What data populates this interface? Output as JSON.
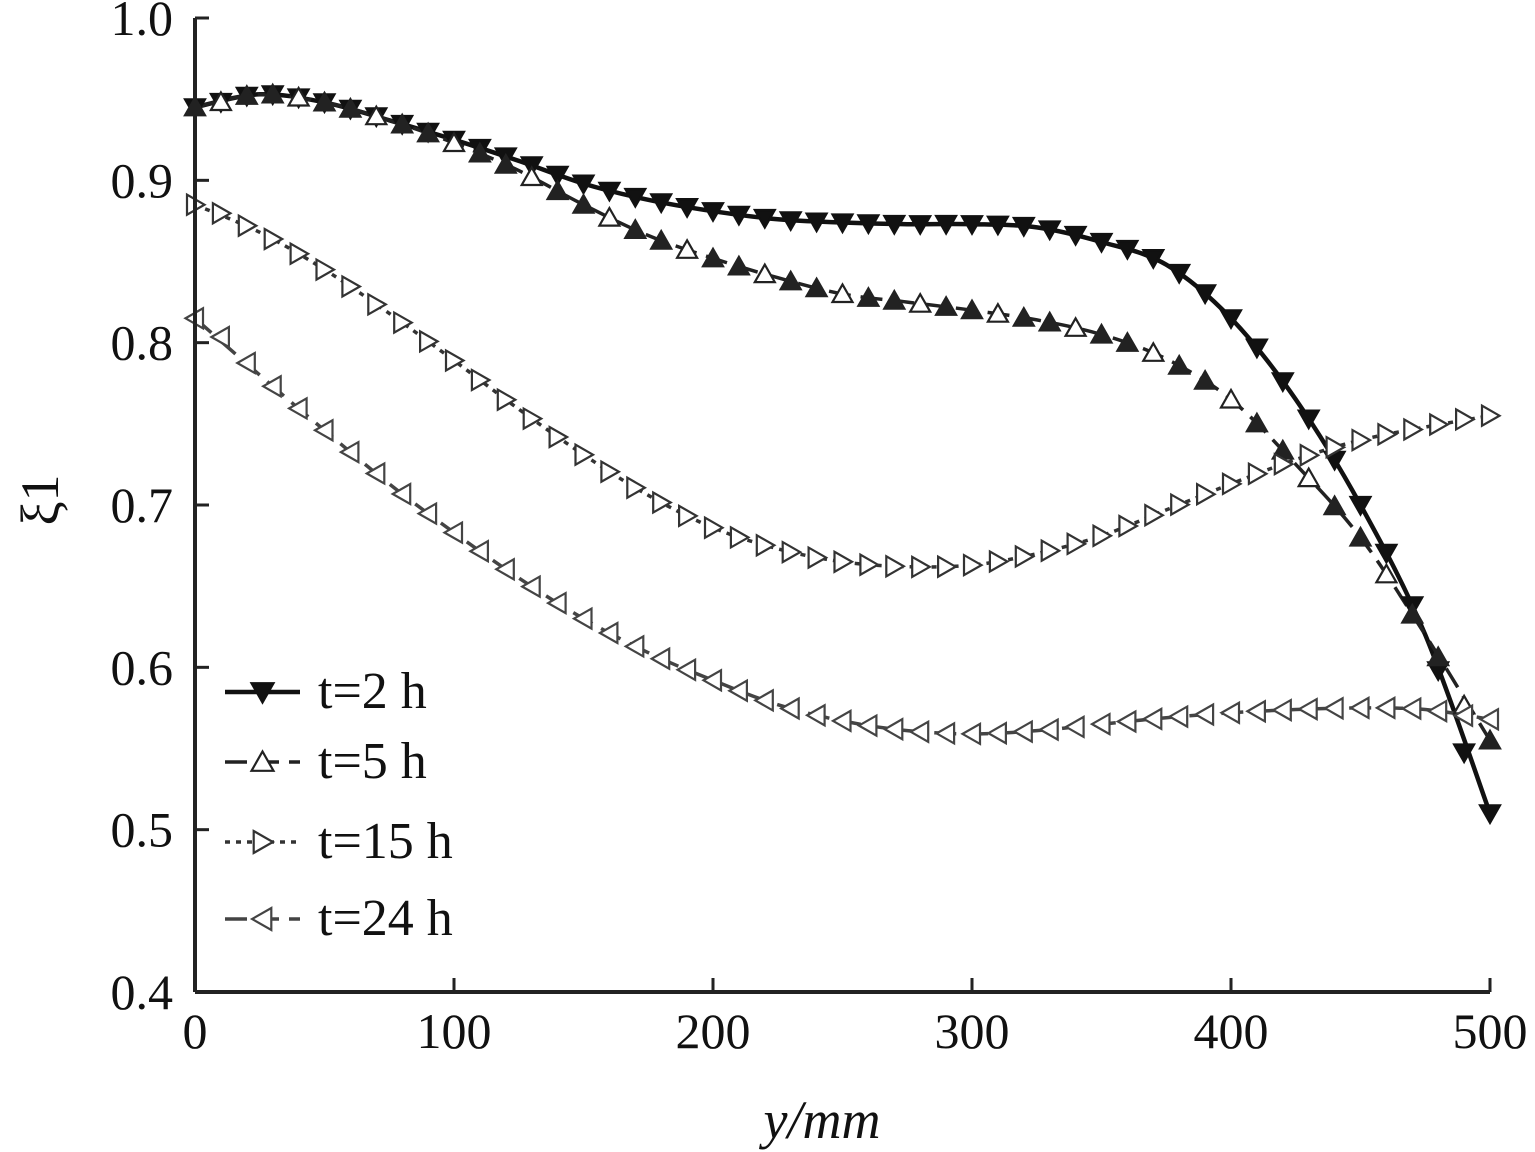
{
  "chart_data": {
    "type": "line",
    "title": "",
    "xlabel": "y/mm",
    "ylabel": "ξ1",
    "xlim": [
      0,
      500
    ],
    "ylim": [
      0.4,
      1.0
    ],
    "x_ticks": [
      "0",
      "100",
      "200",
      "300",
      "400",
      "500"
    ],
    "y_ticks": [
      "0.4",
      "0.5",
      "0.6",
      "0.7",
      "0.8",
      "0.9",
      "1.0"
    ],
    "grid": false,
    "legend_position": "bottom-left",
    "series": [
      {
        "name": "t=2 h",
        "marker": "triangle-down",
        "line": "solid",
        "x": [
          0,
          25,
          50,
          75,
          100,
          125,
          150,
          175,
          200,
          225,
          250,
          275,
          300,
          325,
          350,
          375,
          400,
          425,
          450,
          475,
          500
        ],
        "y": [
          0.945,
          0.953,
          0.948,
          0.937,
          0.925,
          0.912,
          0.898,
          0.888,
          0.881,
          0.876,
          0.874,
          0.873,
          0.873,
          0.871,
          0.862,
          0.848,
          0.815,
          0.765,
          0.7,
          0.62,
          0.51
        ]
      },
      {
        "name": "t=5 h",
        "marker": "triangle-up",
        "line": "dashed",
        "x": [
          0,
          25,
          50,
          75,
          100,
          125,
          150,
          175,
          200,
          225,
          250,
          275,
          300,
          325,
          350,
          375,
          400,
          425,
          450,
          475,
          500
        ],
        "y": [
          0.945,
          0.953,
          0.948,
          0.937,
          0.923,
          0.906,
          0.885,
          0.866,
          0.852,
          0.84,
          0.83,
          0.825,
          0.82,
          0.814,
          0.805,
          0.79,
          0.765,
          0.725,
          0.68,
          0.62,
          0.555
        ]
      },
      {
        "name": "t=15 h",
        "marker": "triangle-right",
        "line": "dotted",
        "x": [
          0,
          25,
          50,
          75,
          100,
          125,
          150,
          175,
          200,
          225,
          250,
          275,
          300,
          325,
          350,
          375,
          400,
          425,
          450,
          475,
          500
        ],
        "y": [
          0.885,
          0.868,
          0.845,
          0.818,
          0.789,
          0.759,
          0.731,
          0.706,
          0.686,
          0.673,
          0.665,
          0.662,
          0.663,
          0.67,
          0.681,
          0.697,
          0.713,
          0.728,
          0.74,
          0.748,
          0.755
        ]
      },
      {
        "name": "t=24 h",
        "marker": "triangle-left",
        "line": "dashed",
        "x": [
          0,
          25,
          50,
          75,
          100,
          125,
          150,
          175,
          200,
          225,
          250,
          275,
          300,
          325,
          350,
          375,
          400,
          425,
          450,
          475,
          500
        ],
        "y": [
          0.815,
          0.78,
          0.746,
          0.713,
          0.683,
          0.655,
          0.63,
          0.609,
          0.592,
          0.577,
          0.567,
          0.561,
          0.559,
          0.561,
          0.565,
          0.569,
          0.572,
          0.574,
          0.575,
          0.574,
          0.568
        ]
      }
    ]
  }
}
